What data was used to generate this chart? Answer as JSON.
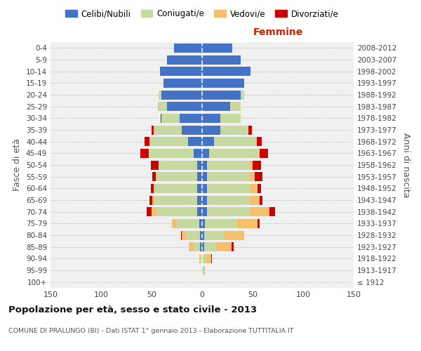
{
  "age_groups": [
    "100+",
    "95-99",
    "90-94",
    "85-89",
    "80-84",
    "75-79",
    "70-74",
    "65-69",
    "60-64",
    "55-59",
    "50-54",
    "45-49",
    "40-44",
    "35-39",
    "30-34",
    "25-29",
    "20-24",
    "15-19",
    "10-14",
    "5-9",
    "0-4"
  ],
  "birth_years": [
    "≤ 1912",
    "1913-1917",
    "1918-1922",
    "1923-1927",
    "1928-1932",
    "1933-1937",
    "1938-1942",
    "1943-1947",
    "1948-1952",
    "1953-1957",
    "1958-1962",
    "1963-1967",
    "1968-1972",
    "1973-1977",
    "1978-1982",
    "1983-1987",
    "1988-1992",
    "1993-1997",
    "1998-2002",
    "2003-2007",
    "2008-2012"
  ],
  "male_celibi": [
    0,
    0,
    0,
    2,
    2,
    3,
    5,
    5,
    5,
    5,
    5,
    8,
    14,
    20,
    22,
    35,
    40,
    38,
    42,
    35,
    28
  ],
  "male_coniugati": [
    0,
    1,
    2,
    6,
    14,
    22,
    40,
    42,
    42,
    40,
    38,
    45,
    38,
    28,
    18,
    8,
    3,
    0,
    0,
    0,
    0
  ],
  "male_vedovi": [
    0,
    0,
    1,
    5,
    4,
    5,
    5,
    2,
    1,
    1,
    0,
    0,
    0,
    0,
    0,
    1,
    0,
    0,
    0,
    0,
    0
  ],
  "male_divorziati": [
    0,
    0,
    0,
    0,
    1,
    0,
    5,
    3,
    3,
    3,
    8,
    8,
    5,
    2,
    1,
    0,
    0,
    0,
    0,
    0,
    0
  ],
  "female_celibi": [
    0,
    0,
    0,
    2,
    2,
    3,
    5,
    5,
    5,
    5,
    5,
    7,
    12,
    18,
    18,
    28,
    38,
    42,
    48,
    38,
    30
  ],
  "female_coniugati": [
    1,
    2,
    4,
    12,
    20,
    32,
    42,
    42,
    42,
    42,
    42,
    50,
    42,
    28,
    20,
    10,
    4,
    0,
    0,
    0,
    0
  ],
  "female_vedovi": [
    0,
    1,
    5,
    15,
    20,
    20,
    20,
    10,
    8,
    5,
    3,
    0,
    0,
    0,
    0,
    0,
    0,
    0,
    0,
    0,
    0
  ],
  "female_divorziati": [
    0,
    0,
    1,
    2,
    0,
    2,
    5,
    3,
    3,
    8,
    8,
    8,
    5,
    3,
    0,
    0,
    0,
    0,
    0,
    0,
    0
  ],
  "color_celibi": "#4472c4",
  "color_coniugati": "#c5d9a0",
  "color_vedovi": "#f5c06e",
  "color_divorziati": "#cc0000",
  "title": "Popolazione per età, sesso e stato civile - 2013",
  "subtitle": "COMUNE DI PRALUNGO (BI) - Dati ISTAT 1° gennaio 2013 - Elaborazione TUTTITALIA.IT",
  "xlabel_right": "Femmine",
  "ylabel_left": "Fasce di età",
  "ylabel_right": "Anni di nascita",
  "xlim": 150,
  "bg_color": "#f0f0f0",
  "legend_labels": [
    "Celibi/Nubili",
    "Coniugati/e",
    "Vedovi/e",
    "Divorziati/e"
  ]
}
